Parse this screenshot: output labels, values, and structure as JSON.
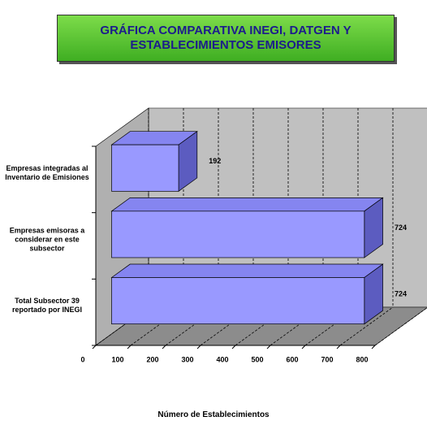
{
  "chart_data": {
    "type": "bar3d_horizontal",
    "title": "GRÁFICA COMPARATIVA INEGI, DATGEN Y ESTABLECIMIENTOS EMISORES",
    "x_label": "Número de Establecimientos",
    "categories": [
      "Empresas integradas al Inventario de Emisiones",
      "Empresas emisoras a considerar en este subsector",
      "Total Subsector 39 reportado por INEGI"
    ],
    "values": [
      192,
      724,
      724
    ],
    "color": "#9999ff",
    "xlim": [
      0,
      800
    ],
    "xticks": [
      0,
      100,
      200,
      300,
      400,
      500,
      600,
      700,
      800
    ],
    "grid": true
  }
}
